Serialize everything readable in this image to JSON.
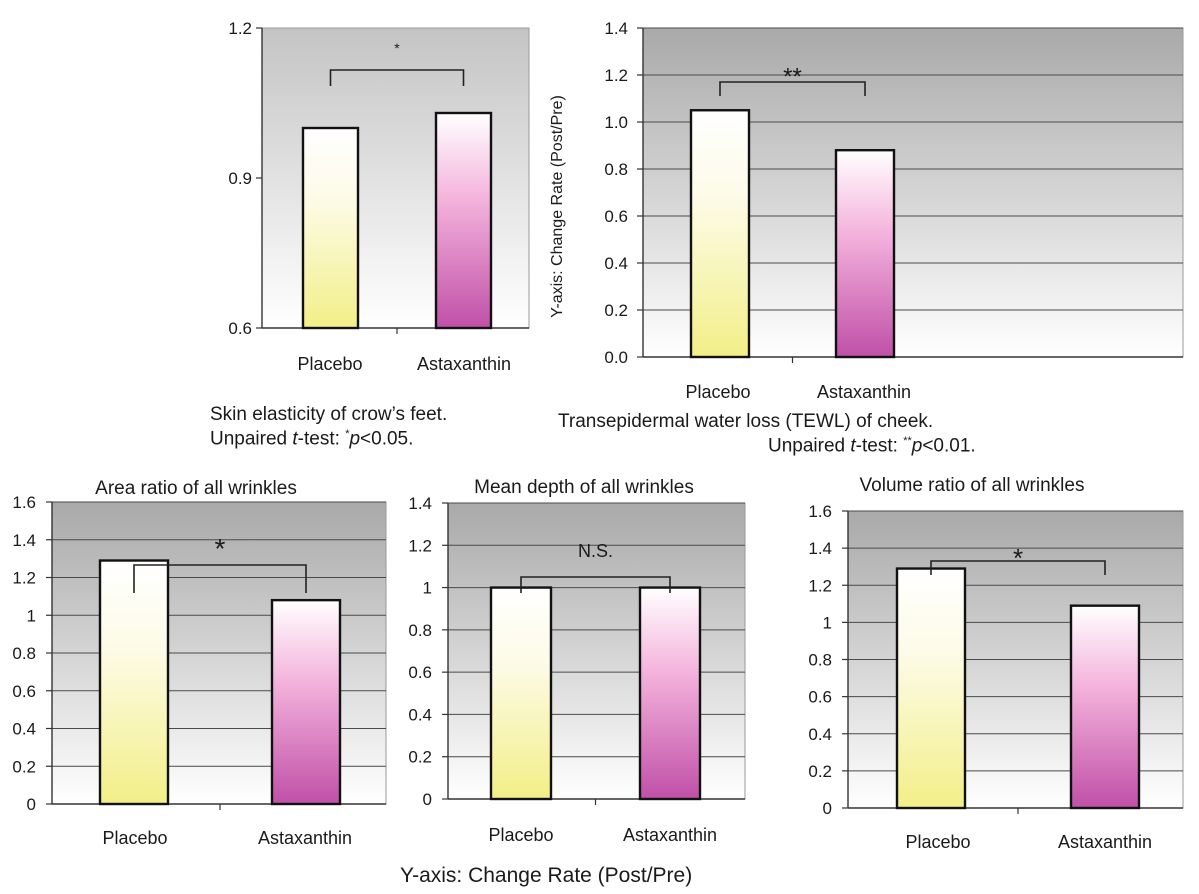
{
  "colors": {
    "placebo_top": "#ffffff",
    "placebo_bottom": "#f2ef88",
    "astaxanthin_top": "#ffffff",
    "astaxanthin_mid": "#f4b3dc",
    "astaxanthin_bottom": "#c050a8",
    "plot_top": "#a9a9a9",
    "plot_bottom": "#ffffff"
  },
  "captions": {
    "elasticity_line1": "Skin elasticity of crow’s feet.",
    "elasticity_line2_a": "Unpaired ",
    "elasticity_line2_t": "t",
    "elasticity_line2_b": "-test: ",
    "elasticity_line2_star": "*",
    "elasticity_line2_p": "p",
    "elasticity_line2_c": "<0.05.",
    "tewl_line1": "Transepidermal water loss (TEWL) of cheek.",
    "tewl_line2_a": "Unpaired ",
    "tewl_line2_t": "t",
    "tewl_line2_b": "-test: ",
    "tewl_line2_star": "**",
    "tewl_line2_p": "p",
    "tewl_line2_c": "<0.01.",
    "bottom_axis_label": "Y-axis: Change Rate (Post/Pre)"
  },
  "chart_data": [
    {
      "type": "bar",
      "id": "elasticity",
      "title": "",
      "caption": "Skin elasticity of crow’s feet.",
      "categories": [
        "Placebo",
        "Astaxanthin"
      ],
      "values": [
        1.0,
        1.03
      ],
      "ylim": [
        0.6,
        1.2
      ],
      "yticks": [
        "0.6",
        "0.9",
        "1.2"
      ],
      "gridlines": false,
      "ylabel": "",
      "significance": "*"
    },
    {
      "type": "bar",
      "id": "tewl",
      "title": "",
      "caption": "Transepidermal water loss (TEWL) of cheek.",
      "categories": [
        "Placebo",
        "Astaxanthin"
      ],
      "values": [
        1.05,
        0.88
      ],
      "ylim": [
        0.0,
        1.4
      ],
      "yticks": [
        "0.0",
        "0.2",
        "0.4",
        "0.6",
        "0.8",
        "1.0",
        "1.2",
        "1.4"
      ],
      "gridlines": true,
      "ylabel": "Y-axis: Change Rate (Post/Pre)",
      "significance": "**"
    },
    {
      "type": "bar",
      "id": "area",
      "title": "Area ratio of all wrinkles",
      "categories": [
        "Placebo",
        "Astaxanthin"
      ],
      "values": [
        1.29,
        1.08
      ],
      "ylim": [
        0,
        1.6
      ],
      "yticks": [
        "0",
        "0.2",
        "0.4",
        "0.6",
        "0.8",
        "1",
        "1.2",
        "1.4",
        "1.6"
      ],
      "gridlines": true,
      "ylabel": "",
      "significance": "*"
    },
    {
      "type": "bar",
      "id": "depth",
      "title": "Mean depth of all wrinkles",
      "categories": [
        "Placebo",
        "Astaxanthin"
      ],
      "values": [
        1.0,
        1.0
      ],
      "ylim": [
        0,
        1.4
      ],
      "yticks": [
        "0",
        "0.2",
        "0.4",
        "0.6",
        "0.8",
        "1",
        "1.2",
        "1.4"
      ],
      "gridlines": true,
      "ylabel": "",
      "significance": "N.S."
    },
    {
      "type": "bar",
      "id": "volume",
      "title": "Volume ratio of all wrinkles",
      "categories": [
        "Placebo",
        "Astaxanthin"
      ],
      "values": [
        1.29,
        1.09
      ],
      "ylim": [
        0,
        1.6
      ],
      "yticks": [
        "0",
        "0.2",
        "0.4",
        "0.6",
        "0.8",
        "1",
        "1.2",
        "1.4",
        "1.6"
      ],
      "gridlines": true,
      "ylabel": "",
      "significance": "*"
    }
  ]
}
